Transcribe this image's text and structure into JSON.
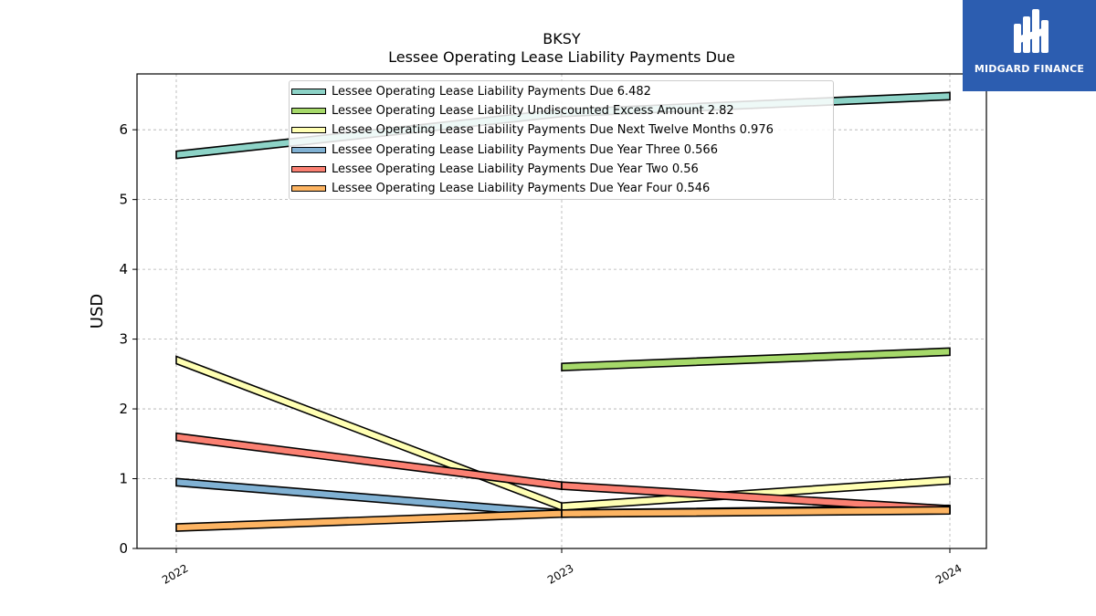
{
  "logo": {
    "text": "MIDGARD FINANCE",
    "color": "#2c5db0"
  },
  "chart_data": {
    "type": "line",
    "title": "BKSY",
    "subtitle": "Lessee Operating Lease Liability Payments Due",
    "ylabel": "USD",
    "xlabel": "",
    "x": [
      "2022",
      "2023",
      "2024"
    ],
    "ylim": [
      0,
      6.8
    ],
    "yticks": [
      0,
      1,
      2,
      3,
      4,
      5,
      6
    ],
    "grid": true,
    "legend_position": "top-center",
    "series": [
      {
        "name": "Lessee Operating Lease Liability Payments Due",
        "legend_value": "6.482",
        "values": [
          5.64,
          6.24,
          6.482
        ],
        "color": "#8dd3c7"
      },
      {
        "name": "Lessee Operating Lease Liability Undiscounted Excess Amount",
        "legend_value": "2.82",
        "values": [
          null,
          2.6,
          2.82
        ],
        "color": "#a6d96a"
      },
      {
        "name": "Lessee Operating Lease Liability Payments Due Next Twelve Months",
        "legend_value": "0.976",
        "values": [
          2.7,
          0.6,
          0.976
        ],
        "color": "#ffffb3"
      },
      {
        "name": "Lessee Operating Lease Liability Payments Due Year Three",
        "legend_value": "0.566",
        "values": [
          0.95,
          0.5,
          0.566
        ],
        "color": "#80b1d3"
      },
      {
        "name": "Lessee Operating Lease Liability Payments Due Year Two",
        "legend_value": "0.56",
        "values": [
          1.6,
          0.9,
          0.56
        ],
        "color": "#fb8072"
      },
      {
        "name": "Lessee Operating Lease Liability Payments Due Year Four",
        "legend_value": "0.546",
        "values": [
          0.3,
          0.5,
          0.546
        ],
        "color": "#fdb462"
      }
    ]
  }
}
